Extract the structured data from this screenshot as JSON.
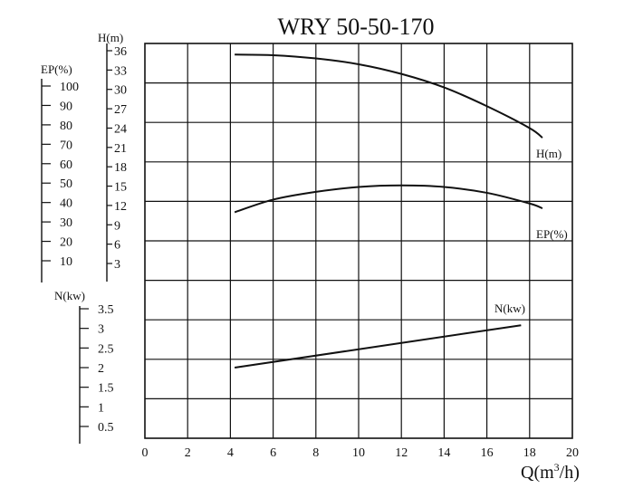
{
  "chart_data": {
    "type": "line",
    "title": "WRY 50-50-170",
    "xlabel_main": "Q(m",
    "xlabel_sup": "3",
    "xlabel_tail": "/h)",
    "xlim": [
      0,
      20
    ],
    "x_ticks": [
      "0",
      "2",
      "4",
      "6",
      "8",
      "10",
      "12",
      "14",
      "16",
      "18",
      "20"
    ],
    "axes": {
      "H": {
        "label": "H(m)",
        "ticks": [
          "36",
          "33",
          "30",
          "27",
          "24",
          "21",
          "18",
          "15",
          "12",
          "9",
          "6",
          "3"
        ],
        "range": [
          0,
          36
        ]
      },
      "EP": {
        "label": "EP(%)",
        "ticks": [
          "100",
          "90",
          "80",
          "70",
          "60",
          "50",
          "40",
          "30",
          "20",
          "10"
        ],
        "range": [
          0,
          100
        ]
      },
      "N": {
        "label": "N(kw)",
        "ticks": [
          "3.5",
          "3",
          "2.5",
          "2",
          "1.5",
          "1",
          "0.5"
        ],
        "range": [
          0,
          3.5
        ]
      }
    },
    "series": [
      {
        "name": "H(m)",
        "axis": "H",
        "x": [
          4.2,
          6,
          8,
          10,
          12,
          14,
          16,
          18,
          18.6
        ],
        "y": [
          35.4,
          35.3,
          34.8,
          33.9,
          32.4,
          30.3,
          27.4,
          24.0,
          22.5
        ]
      },
      {
        "name": "EP(%)",
        "axis": "EP",
        "x": [
          4.2,
          6,
          8,
          10,
          12,
          14,
          16,
          18,
          18.6
        ],
        "y": [
          35,
          41.5,
          45.5,
          48,
          48.8,
          48,
          45,
          39.5,
          37
        ]
      },
      {
        "name": "N(kw)",
        "axis": "N",
        "x": [
          4.2,
          17.6
        ],
        "y": [
          2.0,
          3.08
        ]
      }
    ],
    "grid": true
  }
}
